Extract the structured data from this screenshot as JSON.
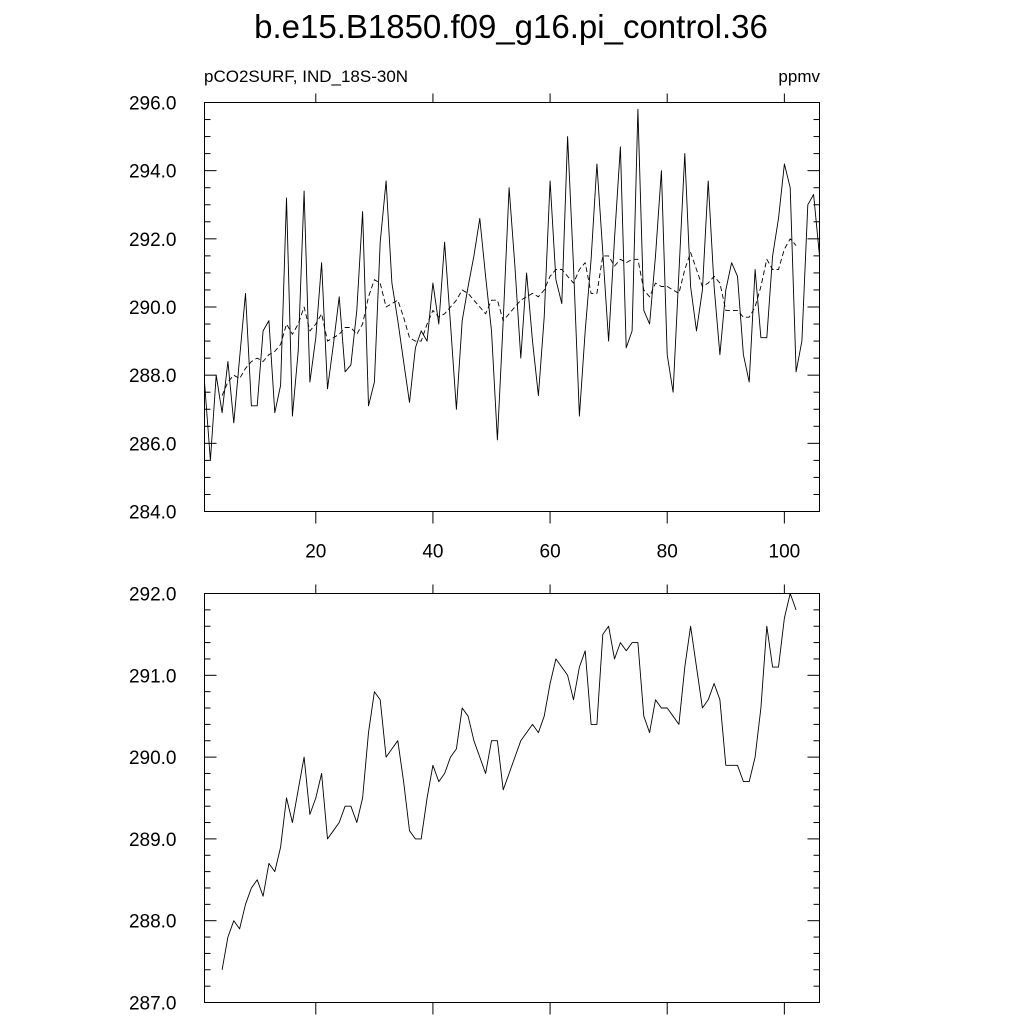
{
  "title": "b.e15.B1850.f09_g16.pi_control.36",
  "colors": {
    "line": "#000000",
    "background": "#ffffff"
  },
  "chart_data": [
    {
      "type": "line",
      "subtitle_left": "pCO2SURF, IND_18S-30N",
      "subtitle_right": "ppmv",
      "xlim": [
        1,
        106
      ],
      "ylim": [
        284,
        296
      ],
      "xticks": [
        20,
        40,
        60,
        80,
        100
      ],
      "xtick_labels": [
        "20",
        "40",
        "60",
        "80",
        "100"
      ],
      "yticks": [
        284,
        286,
        288,
        290,
        292,
        294,
        296
      ],
      "ytick_labels": [
        "284.0",
        "286.0",
        "288.0",
        "290.0",
        "292.0",
        "294.0",
        "296.0"
      ],
      "yminor_step": 0.5,
      "x": [
        1,
        2,
        3,
        4,
        5,
        6,
        7,
        8,
        9,
        10,
        11,
        12,
        13,
        14,
        15,
        16,
        17,
        18,
        19,
        20,
        21,
        22,
        23,
        24,
        25,
        26,
        27,
        28,
        29,
        30,
        31,
        32,
        33,
        34,
        35,
        36,
        37,
        38,
        39,
        40,
        41,
        42,
        43,
        44,
        45,
        46,
        47,
        48,
        49,
        50,
        51,
        52,
        53,
        54,
        55,
        56,
        57,
        58,
        59,
        60,
        61,
        62,
        63,
        64,
        65,
        66,
        67,
        68,
        69,
        70,
        71,
        72,
        73,
        74,
        75,
        76,
        77,
        78,
        79,
        80,
        81,
        82,
        83,
        84,
        85,
        86,
        87,
        88,
        89,
        90,
        91,
        92,
        93,
        94,
        95,
        96,
        97,
        98,
        99,
        100,
        101,
        102,
        103,
        104,
        105,
        106
      ],
      "series": [
        {
          "style": "solid",
          "values": [
            287.8,
            285.5,
            288.0,
            286.9,
            288.4,
            286.6,
            288.5,
            290.4,
            287.1,
            287.1,
            289.3,
            289.6,
            286.9,
            287.7,
            293.2,
            286.8,
            288.7,
            293.4,
            287.8,
            289.1,
            291.3,
            287.6,
            288.9,
            290.3,
            288.1,
            288.3,
            289.9,
            292.8,
            287.1,
            287.8,
            291.9,
            293.7,
            290.7,
            289.6,
            288.4,
            287.2,
            288.8,
            289.3,
            289.0,
            290.7,
            289.5,
            291.9,
            289.5,
            287.0,
            289.6,
            290.6,
            291.5,
            292.6,
            290.9,
            289.3,
            286.1,
            289.6,
            293.5,
            291.2,
            288.5,
            291.0,
            289.0,
            287.4,
            289.7,
            293.7,
            290.8,
            290.1,
            295.0,
            291.2,
            286.8,
            289.3,
            291.4,
            294.2,
            291.6,
            289.0,
            292.0,
            294.7,
            288.8,
            289.3,
            295.8,
            289.9,
            289.5,
            291.5,
            294.0,
            288.6,
            287.5,
            291.0,
            294.5,
            290.6,
            289.3,
            290.5,
            293.7,
            290.6,
            288.6,
            290.5,
            291.3,
            290.9,
            288.6,
            287.8,
            291.1,
            289.1,
            289.1,
            291.5,
            292.6,
            294.2,
            293.5,
            288.1,
            289.0,
            293.0,
            293.3,
            291.5
          ]
        },
        {
          "style": "dashed",
          "values": [
            null,
            null,
            null,
            287.4,
            287.8,
            288.0,
            287.9,
            288.2,
            288.4,
            288.5,
            288.4,
            288.6,
            288.7,
            288.9,
            289.5,
            289.2,
            289.5,
            290.0,
            289.3,
            289.5,
            289.8,
            289.0,
            289.1,
            289.2,
            289.4,
            289.4,
            289.2,
            289.5,
            290.3,
            290.8,
            290.7,
            290.0,
            290.1,
            290.2,
            289.7,
            289.1,
            289.0,
            289.0,
            289.5,
            289.9,
            289.7,
            289.8,
            290.0,
            290.2,
            290.5,
            290.4,
            290.2,
            290.0,
            289.8,
            290.2,
            290.2,
            289.6,
            289.8,
            290.0,
            290.2,
            290.3,
            290.4,
            290.3,
            290.5,
            290.9,
            291.1,
            291.1,
            290.9,
            290.7,
            291.1,
            291.3,
            290.4,
            290.4,
            291.5,
            291.5,
            291.2,
            291.4,
            291.3,
            291.4,
            291.4,
            290.5,
            290.3,
            290.7,
            290.6,
            290.6,
            290.5,
            290.4,
            291.1,
            291.6,
            291.1,
            290.6,
            290.7,
            290.9,
            290.7,
            289.9,
            289.9,
            289.9,
            289.7,
            289.7,
            290.0,
            290.6,
            291.4,
            291.1,
            291.1,
            291.7,
            292.0,
            291.8,
            null,
            null,
            null,
            null
          ]
        }
      ]
    },
    {
      "type": "line",
      "xlim": [
        1,
        106
      ],
      "ylim": [
        287,
        292
      ],
      "xticks": [
        20,
        40,
        60,
        80,
        100
      ],
      "yticks": [
        287,
        288,
        289,
        290,
        291,
        292
      ],
      "ytick_labels": [
        "287.0",
        "288.0",
        "289.0",
        "290.0",
        "291.0",
        "292.0"
      ],
      "yminor_step": 0.2,
      "series": [
        {
          "style": "solid",
          "x": [
            4,
            5,
            6,
            7,
            8,
            9,
            10,
            11,
            12,
            13,
            14,
            15,
            16,
            17,
            18,
            19,
            20,
            21,
            22,
            23,
            24,
            25,
            26,
            27,
            28,
            29,
            30,
            31,
            32,
            33,
            34,
            35,
            36,
            37,
            38,
            39,
            40,
            41,
            42,
            43,
            44,
            45,
            46,
            47,
            48,
            49,
            50,
            51,
            52,
            53,
            54,
            55,
            56,
            57,
            58,
            59,
            60,
            61,
            62,
            63,
            64,
            65,
            66,
            67,
            68,
            69,
            70,
            71,
            72,
            73,
            74,
            75,
            76,
            77,
            78,
            79,
            80,
            81,
            82,
            83,
            84,
            85,
            86,
            87,
            88,
            89,
            90,
            91,
            92,
            93,
            94,
            95,
            96,
            97,
            98,
            99,
            100,
            101,
            102,
            103
          ],
          "values": [
            287.4,
            287.8,
            288.0,
            287.9,
            288.2,
            288.4,
            288.5,
            288.3,
            288.7,
            288.6,
            288.9,
            289.5,
            289.2,
            289.6,
            290.0,
            289.3,
            289.5,
            289.8,
            289.0,
            289.1,
            289.2,
            289.4,
            289.4,
            289.2,
            289.5,
            290.3,
            290.8,
            290.7,
            290.0,
            290.1,
            290.2,
            289.7,
            289.1,
            289.0,
            289.0,
            289.5,
            289.9,
            289.7,
            289.8,
            290.0,
            290.1,
            290.6,
            290.5,
            290.2,
            290.0,
            289.8,
            290.2,
            290.2,
            289.6,
            289.8,
            290.0,
            290.2,
            290.3,
            290.4,
            290.3,
            290.5,
            290.9,
            291.2,
            291.1,
            291.0,
            290.7,
            291.1,
            291.3,
            290.4,
            290.4,
            291.5,
            291.6,
            291.2,
            291.4,
            291.3,
            291.4,
            291.4,
            290.5,
            290.3,
            290.7,
            290.6,
            290.6,
            290.5,
            290.4,
            291.1,
            291.6,
            291.1,
            290.6,
            290.7,
            290.9,
            290.7,
            289.9,
            289.9,
            289.9,
            289.7,
            289.7,
            290.0,
            290.6,
            291.6,
            291.1,
            291.1,
            291.7,
            292.0,
            291.8,
            null
          ]
        }
      ]
    }
  ]
}
